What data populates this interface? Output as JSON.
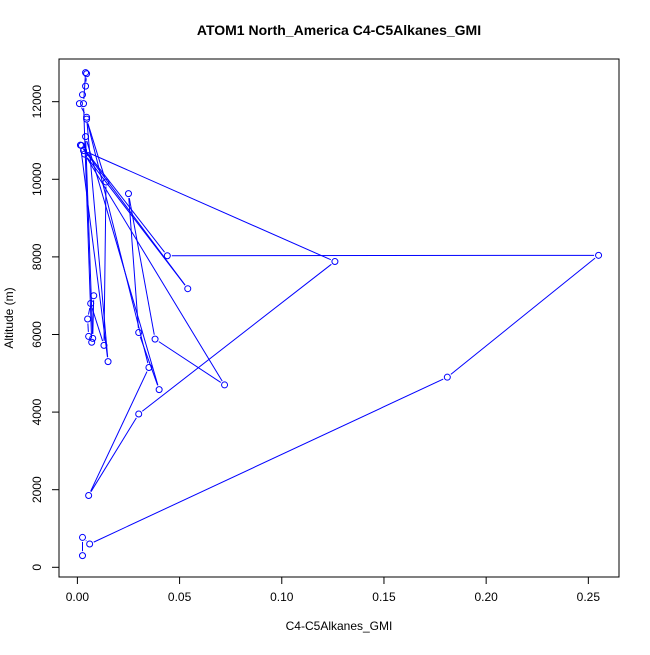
{
  "chart_data": {
    "type": "line",
    "title": "ATOM1 North_America C4-C5Alkanes_GMI",
    "xlabel": "C4-C5Alkanes_GMI",
    "ylabel": "Altitude (m)",
    "xlim": [
      -0.009,
      0.265
    ],
    "ylim": [
      -250,
      13100
    ],
    "x_ticks": [
      0.0,
      0.05,
      0.1,
      0.15,
      0.2,
      0.25
    ],
    "x_tick_labels": [
      "0.00",
      "0.05",
      "0.10",
      "0.15",
      "0.20",
      "0.25"
    ],
    "y_ticks": [
      0,
      2000,
      4000,
      6000,
      8000,
      10000,
      12000
    ],
    "y_tick_labels": [
      "0",
      "2000",
      "4000",
      "6000",
      "8000",
      "10000",
      "12000"
    ],
    "grid": false,
    "series_color": "#0000ff",
    "series": [
      {
        "points": [
          [
            0.0025,
            300
          ],
          [
            0.0025,
            770
          ],
          [
            0.006,
            600
          ],
          [
            0.181,
            4900
          ],
          [
            0.255,
            8040
          ],
          [
            0.044,
            8030
          ],
          [
            0.002,
            10870
          ],
          [
            0.003,
            10740
          ],
          [
            0.126,
            7880
          ],
          [
            0.03,
            3950
          ],
          [
            0.0055,
            1850
          ],
          [
            0.035,
            5150
          ],
          [
            0.0045,
            11550
          ],
          [
            0.014,
            9930
          ],
          [
            0.013,
            5720
          ],
          [
            0.0065,
            6800
          ],
          [
            0.005,
            6400
          ],
          [
            0.0055,
            5950
          ],
          [
            0.007,
            5800
          ],
          [
            0.003,
            11950
          ],
          [
            0.004,
            12750
          ],
          [
            0.0045,
            12720
          ],
          [
            0.004,
            12400
          ],
          [
            0.0025,
            12180
          ],
          [
            0.001,
            11950
          ],
          [
            0.0045,
            11600
          ],
          [
            0.015,
            5300
          ],
          [
            0.0015,
            10880
          ],
          [
            0.054,
            7180
          ],
          [
            0.0035,
            10650
          ],
          [
            0.072,
            4700
          ],
          [
            0.038,
            5880
          ],
          [
            0.025,
            9630
          ],
          [
            0.03,
            6050
          ],
          [
            0.04,
            4580
          ],
          [
            0.004,
            11100
          ],
          [
            0.0075,
            5900
          ],
          [
            0.008,
            7000
          ]
        ]
      }
    ]
  }
}
